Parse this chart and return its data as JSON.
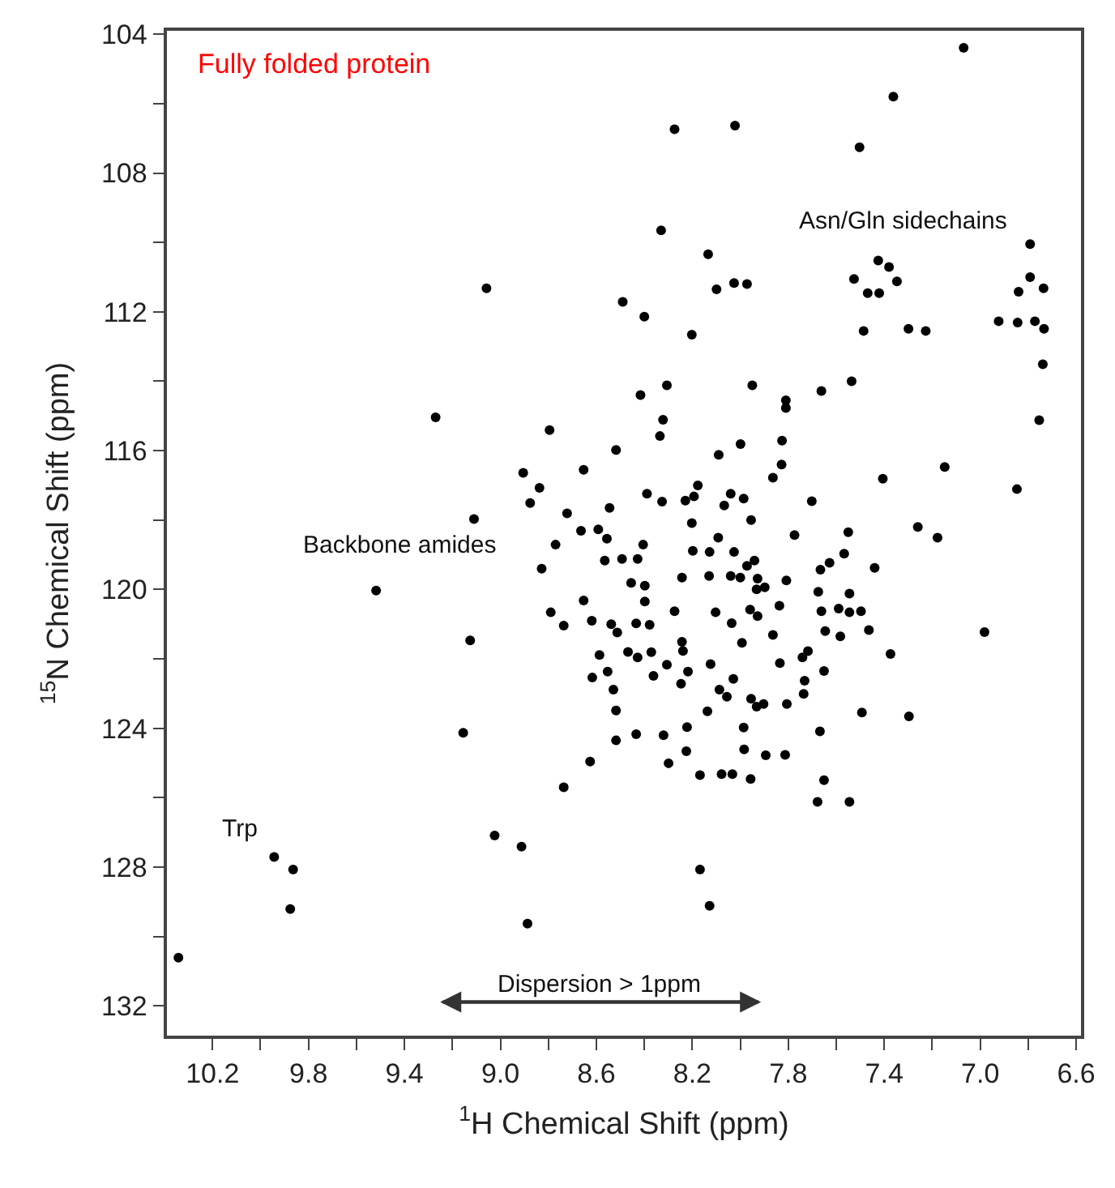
{
  "chart_data": {
    "type": "scatter",
    "title": "Fully folded protein",
    "xlabel": "$^{1}$H Chemical Shift (ppm)",
    "ylabel": "$^{15}$N Chemical Shift (ppm)",
    "xlim": [
      10.39,
      6.58
    ],
    "ylim": [
      132.86,
      103.9
    ],
    "xticks": [
      10.2,
      {
        "value": 10.0,
        "label": null
      },
      9.8,
      {
        "value": 9.6,
        "label": null
      },
      9.4,
      {
        "value": 9.2,
        "label": null
      },
      {
        "value": 9.0,
        "label": "9.0"
      },
      {
        "value": 8.8,
        "label": null
      },
      8.6,
      {
        "value": 8.4,
        "label": null
      },
      8.2,
      {
        "value": 8.0,
        "label": null
      },
      7.8,
      {
        "value": 7.6,
        "label": null
      },
      7.4,
      {
        "value": 7.2,
        "label": null
      },
      {
        "value": 7.0,
        "label": "7.0"
      },
      {
        "value": 6.8,
        "label": null
      },
      6.6
    ],
    "yticks": [
      104,
      {
        "value": 106,
        "label": null
      },
      108,
      {
        "value": 110,
        "label": null
      },
      112,
      {
        "value": 114,
        "label": null
      },
      116,
      {
        "value": 118,
        "label": null
      },
      120,
      {
        "value": 122,
        "label": null
      },
      124,
      {
        "value": 126,
        "label": null
      },
      128,
      {
        "value": 130,
        "label": null
      },
      132
    ],
    "marker": "circle",
    "annotations": [
      "Asn/Gln sidechains",
      "Backbone amides",
      "Trp",
      "Dispersion > 1ppm"
    ],
    "series": [
      {
        "color": "#000000",
        "x": [
          9.058,
          8.49,
          8.4,
          8.416,
          9.27,
          8.795,
          8.518,
          8.905,
          8.653,
          8.837,
          8.389,
          8.876,
          8.545,
          8.722,
          9.11,
          8.664,
          8.592,
          8.77,
          8.556,
          8.405,
          8.828,
          8.565,
          8.493,
          8.428,
          9.518,
          8.455,
          8.398,
          8.653,
          8.398,
          8.79,
          8.736,
          8.619,
          8.538,
          8.513,
          8.434,
          9.126,
          8.587,
          8.468,
          8.428,
          8.553,
          8.617,
          8.529,
          8.518,
          8.518,
          8.434,
          9.155,
          8.626,
          8.736,
          9.024,
          8.912,
          9.943,
          9.864,
          9.876,
          8.887,
          10.342,
          7.069,
          7.362,
          8.274,
          8.022,
          7.503,
          8.33,
          8.134,
          8.026,
          7.972,
          8.099,
          8.202,
          7.526,
          7.425,
          7.38,
          7.347,
          7.469,
          7.421,
          6.792,
          6.792,
          6.736,
          6.84,
          7.486,
          7.299,
          7.227,
          6.923,
          6.844,
          6.772,
          6.734,
          6.739,
          8.306,
          7.95,
          7.662,
          7.536,
          7.81,
          7.81,
          8.322,
          8.335,
          7.999,
          7.826,
          8.09,
          7.828,
          7.864,
          8.177,
          7.406,
          6.847,
          6.754,
          7.148,
          8.326,
          8.229,
          8.193,
          8.04,
          7.986,
          8.067,
          7.955,
          8.202,
          8.092,
          7.774,
          7.702,
          7.55,
          7.26,
          7.178,
          8.198,
          8.128,
          8.026,
          7.941,
          7.972,
          7.628,
          7.567,
          7.666,
          7.44,
          8.243,
          8.13,
          8.04,
          8.0,
          7.928,
          7.932,
          7.898,
          7.808,
          7.675,
          7.545,
          8.274,
          8.103,
          7.959,
          7.928,
          7.837,
          7.662,
          7.59,
          7.545,
          7.497,
          8.378,
          8.036,
          8.243,
          8.239,
          7.993,
          7.864,
          7.646,
          7.583,
          7.464,
          6.982,
          8.371,
          8.306,
          8.218,
          8.124,
          8.362,
          8.247,
          8.029,
          8.087,
          8.056,
          7.955,
          7.932,
          7.903,
          7.835,
          7.741,
          7.718,
          7.651,
          7.732,
          7.736,
          7.806,
          7.374,
          8.137,
          8.222,
          8.32,
          7.986,
          7.493,
          7.297,
          7.668,
          8.225,
          8.299,
          7.984,
          7.894,
          7.813,
          8.168,
          8.078,
          8.033,
          7.957,
          7.651,
          7.678,
          7.545,
          8.168,
          8.128
        ],
        "values": [
          111.32,
          111.71,
          112.14,
          114.4,
          115.04,
          115.41,
          115.98,
          116.64,
          116.55,
          117.07,
          117.24,
          117.51,
          117.65,
          117.81,
          117.97,
          118.31,
          118.27,
          118.71,
          118.54,
          118.71,
          119.4,
          119.17,
          119.12,
          119.12,
          120.03,
          119.81,
          119.89,
          120.32,
          120.35,
          120.66,
          121.04,
          120.9,
          121.0,
          121.24,
          120.98,
          121.47,
          121.89,
          121.8,
          121.96,
          122.37,
          122.54,
          122.89,
          123.49,
          124.35,
          124.17,
          124.13,
          124.96,
          125.7,
          127.09,
          127.41,
          127.71,
          128.07,
          129.21,
          129.63,
          130.61,
          104.39,
          105.8,
          106.74,
          106.63,
          107.26,
          109.65,
          110.34,
          111.17,
          111.2,
          111.35,
          112.66,
          111.05,
          110.52,
          110.71,
          111.12,
          111.46,
          111.46,
          110.05,
          111.0,
          111.32,
          111.42,
          112.55,
          112.49,
          112.55,
          112.27,
          112.31,
          112.27,
          112.49,
          113.51,
          114.12,
          114.12,
          114.28,
          114.0,
          114.55,
          114.77,
          115.11,
          115.58,
          115.81,
          115.71,
          116.12,
          116.4,
          116.78,
          117.0,
          116.81,
          117.11,
          115.12,
          116.47,
          117.47,
          117.44,
          117.32,
          117.24,
          117.38,
          117.58,
          118.0,
          118.09,
          118.51,
          118.43,
          117.46,
          118.35,
          118.2,
          118.51,
          118.89,
          118.92,
          118.92,
          119.17,
          119.32,
          119.23,
          118.97,
          119.43,
          119.38,
          119.66,
          119.61,
          119.61,
          119.66,
          119.69,
          120.0,
          119.94,
          119.74,
          120.07,
          120.12,
          120.63,
          120.66,
          120.58,
          120.77,
          120.47,
          120.63,
          120.55,
          120.66,
          120.63,
          121.02,
          120.97,
          121.51,
          121.77,
          121.54,
          121.31,
          121.2,
          121.35,
          121.17,
          121.23,
          121.81,
          122.17,
          122.37,
          122.15,
          122.49,
          122.72,
          122.58,
          122.89,
          123.09,
          123.15,
          123.38,
          123.3,
          122.12,
          121.96,
          121.78,
          122.35,
          122.63,
          123.01,
          123.3,
          121.86,
          123.51,
          123.97,
          124.2,
          123.98,
          123.55,
          123.66,
          124.09,
          124.66,
          125.01,
          124.61,
          124.78,
          124.77,
          125.35,
          125.32,
          125.32,
          125.46,
          125.5,
          126.12,
          126.12,
          128.07,
          129.12
        ]
      }
    ]
  }
}
